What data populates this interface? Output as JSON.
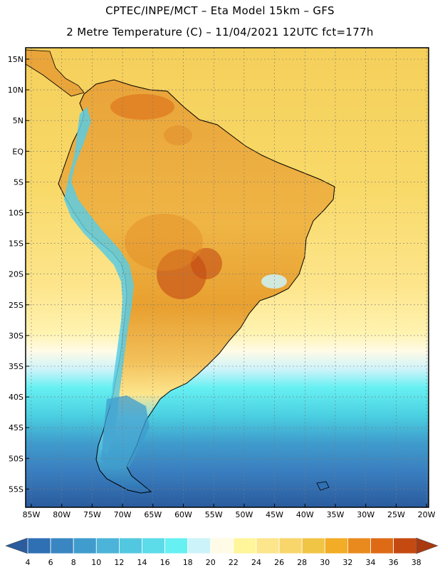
{
  "title_line1": "CPTEC/INPE/MCT –  Eta Model 15km – GFS",
  "title_line2": "2 Metre Temperature (C) – 11/04/2021 12UTC fct=177h",
  "lat_labels": [
    "15N",
    "10N",
    "5N",
    "EQ",
    "5S",
    "10S",
    "15S",
    "20S",
    "25S",
    "30S",
    "35S",
    "40S",
    "45S",
    "50S",
    "55S"
  ],
  "lon_labels": [
    "85W",
    "80W",
    "75W",
    "70W",
    "65W",
    "60W",
    "55W",
    "50W",
    "45W",
    "40W",
    "35W",
    "30W",
    "25W",
    "20W"
  ],
  "colorbar": {
    "labels": [
      "4",
      "6",
      "8",
      "10",
      "12",
      "14",
      "16",
      "18",
      "20",
      "22",
      "24",
      "26",
      "28",
      "30",
      "32",
      "34",
      "36",
      "38"
    ],
    "colors": [
      "#2a5c9e",
      "#2f6fb3",
      "#3a86c2",
      "#3f9ccc",
      "#4bb4d8",
      "#52c8e0",
      "#5cdbe9",
      "#66f0f2",
      "#cdf3fa",
      "#fffbe6",
      "#fff59a",
      "#fde58c",
      "#f8d66b",
      "#f0c445",
      "#f2ac25",
      "#e98a1f",
      "#de6a16",
      "#c54a12",
      "#a93a10"
    ]
  }
}
